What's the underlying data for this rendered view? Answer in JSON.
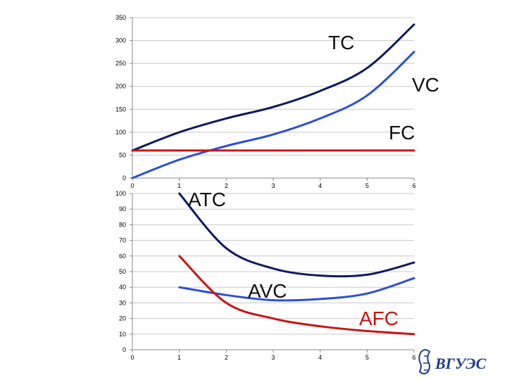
{
  "chart_data": [
    {
      "type": "line",
      "x": [
        0,
        1,
        2,
        3,
        4,
        5,
        6
      ],
      "xticks": [
        "0",
        "1",
        "2",
        "3",
        "4",
        "5",
        "6"
      ],
      "yticks": [
        "0",
        "50",
        "100",
        "150",
        "200",
        "250",
        "300",
        "350"
      ],
      "ylim": [
        0,
        350
      ],
      "xlim": [
        0,
        6
      ],
      "grid": "horizontal",
      "series": [
        {
          "name": "TC",
          "color": "#0d1a5c",
          "values": [
            60,
            100,
            130,
            155,
            190,
            240,
            335
          ]
        },
        {
          "name": "VC",
          "color": "#2a4fd6",
          "values": [
            0,
            40,
            70,
            95,
            130,
            180,
            275
          ]
        },
        {
          "name": "FC",
          "color": "#c81414",
          "values": [
            60,
            60,
            60,
            60,
            60,
            60,
            60
          ]
        }
      ]
    },
    {
      "type": "line",
      "x": [
        1,
        2,
        3,
        4,
        5,
        6
      ],
      "xticks": [
        "0",
        "1",
        "2",
        "3",
        "4",
        "5",
        "6"
      ],
      "yticks": [
        "0",
        "10",
        "20",
        "30",
        "40",
        "50",
        "60",
        "70",
        "80",
        "90",
        "100"
      ],
      "ylim": [
        0,
        100
      ],
      "xlim": [
        0,
        6
      ],
      "grid": "horizontal",
      "series": [
        {
          "name": "ATC",
          "color": "#0d1a5c",
          "values": [
            100,
            65,
            52,
            47.5,
            48,
            55.8
          ]
        },
        {
          "name": "AVC",
          "color": "#2a4fd6",
          "values": [
            40,
            35,
            31.7,
            32.5,
            36,
            45.8
          ]
        },
        {
          "name": "AFC",
          "color": "#c81414",
          "values": [
            60,
            30,
            20,
            15,
            12,
            10
          ]
        }
      ]
    }
  ],
  "labels": {
    "tc": "TC",
    "vc": "VC",
    "fc": "FC",
    "atc": "ATC",
    "avc": "AVC",
    "afc": "AFC"
  },
  "logo": {
    "icon": "university-emblem-icon",
    "text": "ВГУЭС"
  }
}
